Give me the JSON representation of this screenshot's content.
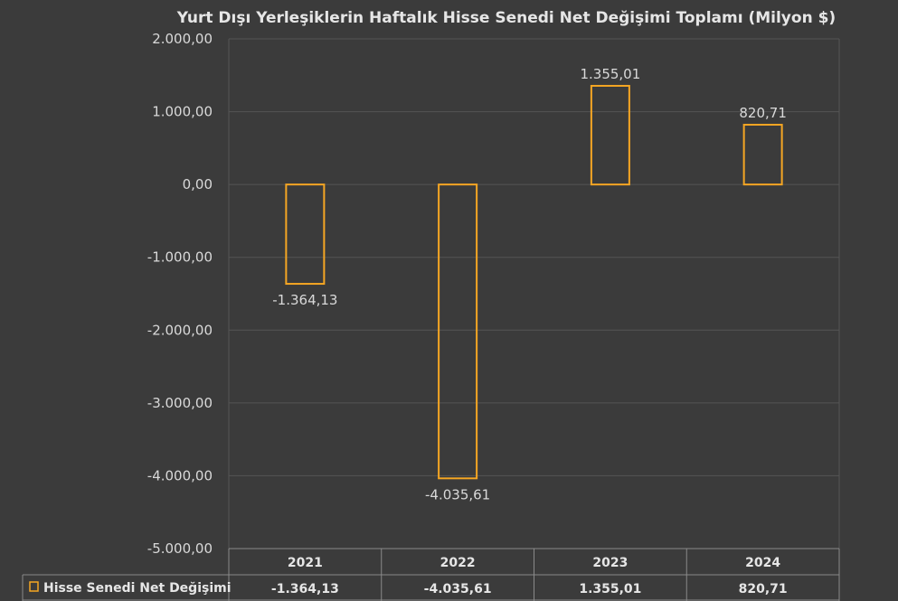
{
  "colors": {
    "background": "#3b3b3b",
    "bar_outline": "#f5a623",
    "gridline": "#555555",
    "text": "#d9d9d9"
  },
  "chart_data": {
    "type": "bar",
    "title": "Yurt Dışı Yerleşiklerin Haftalık Hisse Senedi Net Değişimi Toplamı (Milyon $)",
    "categories": [
      "2021",
      "2022",
      "2023",
      "2024"
    ],
    "series": [
      {
        "name": "Hisse Senedi Net Değişimi",
        "values": [
          -1364.13,
          -4035.61,
          1355.01,
          820.71
        ],
        "labels": [
          "-1.364,13",
          "-4.035,61",
          "1.355,01",
          "820,71"
        ]
      }
    ],
    "ylim": [
      -5000,
      2000
    ],
    "yticks": [
      2000,
      1000,
      0,
      -1000,
      -2000,
      -3000,
      -4000,
      -5000
    ],
    "ytick_labels": [
      "2.000,00",
      "1.000,00",
      "0,00",
      "-1.000,00",
      "-2.000,00",
      "-3.000,00",
      "-4.000,00",
      "-5.000,00"
    ],
    "grid": true,
    "legend": "data-table",
    "data_table": true
  }
}
